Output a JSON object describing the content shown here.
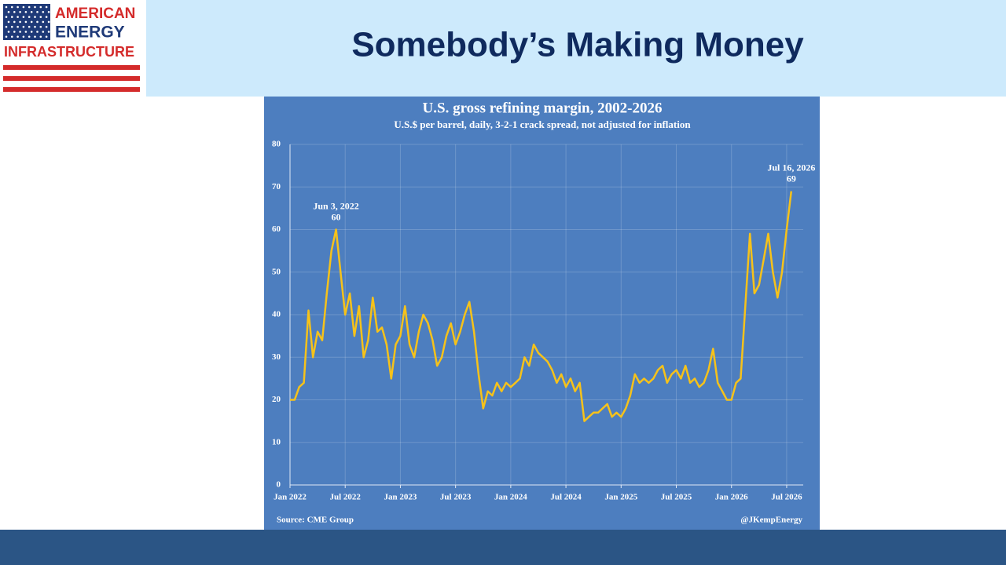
{
  "slide": {
    "title": "Somebody’s Making Money",
    "logo": {
      "line1": "AMERICAN",
      "line2": "ENERGY",
      "line3": "INFRASTRUCTURE"
    }
  },
  "chart_data": {
    "type": "line",
    "title": "U.S. gross refining margin, 2002-2026",
    "subtitle": "U.S.$ per barrel, daily, 3-2-1 crack spread, not adjusted for inflation",
    "source": "Source: CME Group",
    "credit": "@JKempEnergy",
    "x": [
      2022,
      2022.042,
      2022.083,
      2022.125,
      2022.167,
      2022.208,
      2022.25,
      2022.292,
      2022.333,
      2022.375,
      2022.417,
      2022.458,
      2022.5,
      2022.542,
      2022.583,
      2022.625,
      2022.667,
      2022.708,
      2022.75,
      2022.792,
      2022.833,
      2022.875,
      2022.917,
      2022.958,
      2023,
      2023.042,
      2023.083,
      2023.125,
      2023.167,
      2023.208,
      2023.25,
      2023.292,
      2023.333,
      2023.375,
      2023.417,
      2023.458,
      2023.5,
      2023.542,
      2023.583,
      2023.625,
      2023.667,
      2023.708,
      2023.75,
      2023.792,
      2023.833,
      2023.875,
      2023.917,
      2023.958,
      2024,
      2024.042,
      2024.083,
      2024.125,
      2024.167,
      2024.208,
      2024.25,
      2024.292,
      2024.333,
      2024.375,
      2024.417,
      2024.458,
      2024.5,
      2024.542,
      2024.583,
      2024.625,
      2024.667,
      2024.708,
      2024.75,
      2024.792,
      2024.833,
      2024.875,
      2024.917,
      2024.958,
      2025,
      2025.042,
      2025.083,
      2025.125,
      2025.167,
      2025.208,
      2025.25,
      2025.292,
      2025.333,
      2025.375,
      2025.417,
      2025.458,
      2025.5,
      2025.542,
      2025.583,
      2025.625,
      2025.667,
      2025.708,
      2025.75,
      2025.792,
      2025.833,
      2025.875,
      2025.917,
      2025.958,
      2026,
      2026.042,
      2026.083,
      2026.125,
      2026.167,
      2026.208,
      2026.25,
      2026.292,
      2026.333,
      2026.375,
      2026.417,
      2026.458,
      2026.5,
      2026.542
    ],
    "series": [
      {
        "color": "#f6c21a",
        "values": [
          20,
          20,
          23,
          24,
          41,
          30,
          36,
          34,
          45,
          55,
          60,
          50,
          40,
          45,
          35,
          42,
          30,
          34,
          44,
          36,
          37,
          33,
          25,
          33,
          35,
          42,
          33,
          30,
          36,
          40,
          38,
          34,
          28,
          30,
          35,
          38,
          33,
          36,
          40,
          43,
          36,
          26,
          18,
          22,
          21,
          24,
          22,
          24,
          23,
          24,
          25,
          30,
          28,
          33,
          31,
          30,
          29,
          27,
          24,
          26,
          23,
          25,
          22,
          24,
          15,
          16,
          17,
          17,
          18,
          19,
          16,
          17,
          16,
          18,
          21,
          26,
          24,
          25,
          24,
          25,
          27,
          28,
          24,
          26,
          27,
          25,
          28,
          24,
          25,
          23,
          24,
          27,
          32,
          24,
          22,
          20,
          20,
          24,
          25,
          42,
          59,
          45,
          47,
          53,
          59,
          50,
          44,
          50,
          60,
          69
        ]
      }
    ],
    "annotations": [
      {
        "label": "Jun 3, 2022",
        "x": 2022.417,
        "y": 60
      },
      {
        "label": "Jul 16, 2026",
        "x": 2026.542,
        "y": 69
      }
    ],
    "xlim": [
      2022,
      2026.65
    ],
    "xticks": [
      {
        "value": 2022,
        "label": "Jan 2022"
      },
      {
        "value": 2022.5,
        "label": "Jul 2022"
      },
      {
        "value": 2023,
        "label": "Jan 2023"
      },
      {
        "value": 2023.5,
        "label": "Jul 2023"
      },
      {
        "value": 2024,
        "label": "Jan 2024"
      },
      {
        "value": 2024.5,
        "label": "Jul 2024"
      },
      {
        "value": 2025,
        "label": "Jan 2025"
      },
      {
        "value": 2025.5,
        "label": "Jul 2025"
      },
      {
        "value": 2026,
        "label": "Jan 2026"
      },
      {
        "value": 2026.5,
        "label": "Jul 2026"
      }
    ],
    "ylim": [
      0,
      80
    ],
    "yticks": [
      0,
      10,
      20,
      30,
      40,
      50,
      60,
      70,
      80
    ],
    "grid": true
  }
}
